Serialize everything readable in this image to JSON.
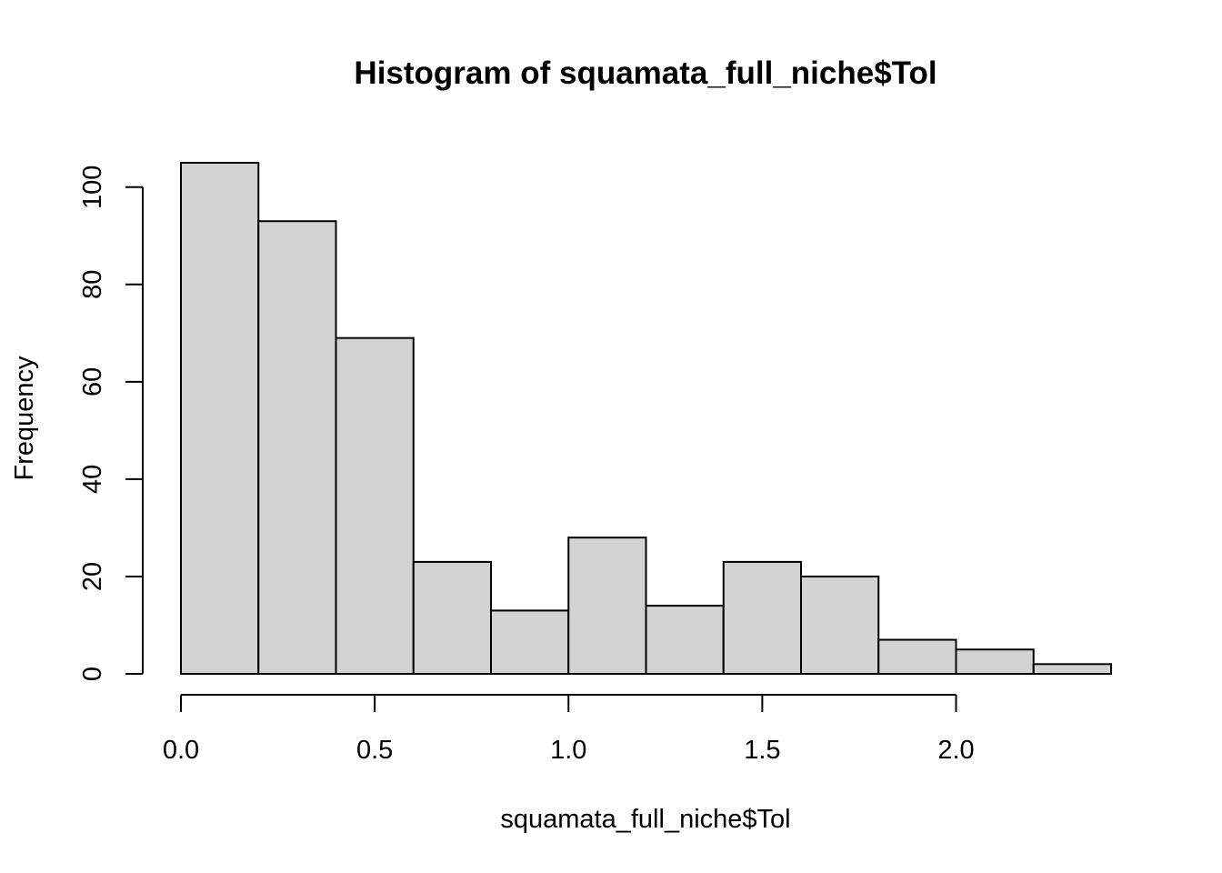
{
  "chart_data": {
    "type": "bar",
    "title": "Histogram of squamata_full_niche$Tol",
    "xlabel": "squamata_full_niche$Tol",
    "ylabel": "Frequency",
    "bins": [
      {
        "start": 0.0,
        "end": 0.2,
        "count": 105
      },
      {
        "start": 0.2,
        "end": 0.4,
        "count": 93
      },
      {
        "start": 0.4,
        "end": 0.6,
        "count": 69
      },
      {
        "start": 0.6,
        "end": 0.8,
        "count": 23
      },
      {
        "start": 0.8,
        "end": 1.0,
        "count": 13
      },
      {
        "start": 1.0,
        "end": 1.2,
        "count": 28
      },
      {
        "start": 1.2,
        "end": 1.4,
        "count": 14
      },
      {
        "start": 1.4,
        "end": 1.6,
        "count": 23
      },
      {
        "start": 1.6,
        "end": 1.8,
        "count": 20
      },
      {
        "start": 1.8,
        "end": 2.0,
        "count": 7
      },
      {
        "start": 2.0,
        "end": 2.2,
        "count": 5
      },
      {
        "start": 2.2,
        "end": 2.4,
        "count": 2
      }
    ],
    "xlim": [
      0.0,
      2.4
    ],
    "ylim": [
      0,
      105
    ],
    "x_ticks": [
      0.0,
      0.5,
      1.0,
      1.5,
      2.0
    ],
    "x_tick_labels": [
      "0.0",
      "0.5",
      "1.0",
      "1.5",
      "2.0"
    ],
    "y_ticks": [
      0,
      20,
      40,
      60,
      80,
      100
    ],
    "y_tick_labels": [
      "0",
      "20",
      "40",
      "60",
      "80",
      "100"
    ],
    "grid": false,
    "colors": {
      "bar_fill": "#d3d3d3",
      "bar_stroke": "#000000",
      "background": "#ffffff"
    }
  }
}
